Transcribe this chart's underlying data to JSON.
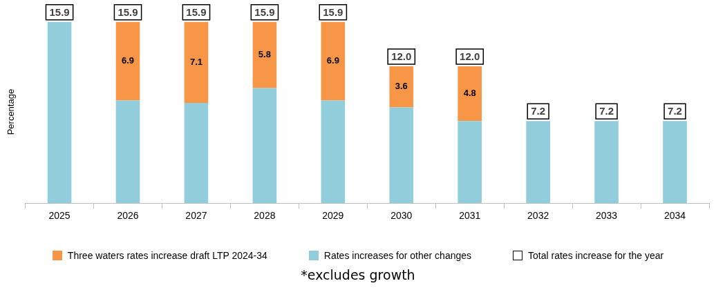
{
  "chart_data": {
    "type": "bar",
    "stacked": true,
    "ylabel": "Percentage",
    "categories": [
      "2025",
      "2026",
      "2027",
      "2028",
      "2029",
      "2030",
      "2031",
      "2032",
      "2033",
      "2034"
    ],
    "series": [
      {
        "name": "Rates increases for other changes",
        "color": "#92cddc",
        "values": [
          15.9,
          9.0,
          8.8,
          10.1,
          9.0,
          8.4,
          7.2,
          7.2,
          7.2,
          7.2
        ],
        "value_labels": [
          null,
          null,
          null,
          null,
          null,
          null,
          null,
          null,
          null,
          null
        ]
      },
      {
        "name": "Three waters rates increase draft LTP 2024-34",
        "color": "#f79646",
        "values": [
          null,
          6.9,
          7.1,
          5.8,
          6.9,
          3.6,
          4.8,
          null,
          null,
          null
        ],
        "value_labels": [
          null,
          "6.9",
          "7.1",
          "5.8",
          "6.9",
          "3.6",
          "4.8",
          null,
          null,
          null
        ]
      }
    ],
    "totals": [
      "15.9",
      "15.9",
      "15.9",
      "15.9",
      "15.9",
      "12.0",
      "12.0",
      "7.2",
      "7.2",
      "7.2"
    ],
    "legend": "bottom",
    "grid": false,
    "annotations": [
      "Total rates increase for the year",
      "*excludes growth"
    ]
  }
}
